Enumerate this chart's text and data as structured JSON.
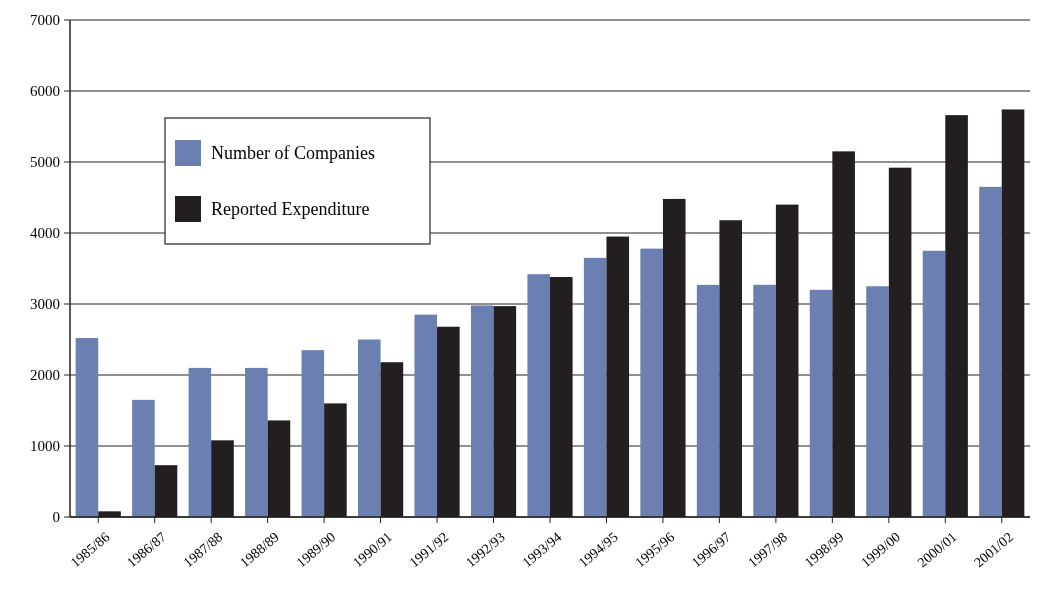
{
  "chart_data": {
    "type": "bar",
    "categories": [
      "1985/86",
      "1986/87",
      "1987/88",
      "1988/89",
      "1989/90",
      "1990/91",
      "1991/92",
      "1992/93",
      "1993/94",
      "1994/95",
      "1995/96",
      "1996/97",
      "1997/98",
      "1998/99",
      "1999/00",
      "2000/01",
      "2001/02"
    ],
    "series": [
      {
        "name": "Number of Companies",
        "color": "#6b80b0",
        "values": [
          2520,
          1650,
          2100,
          2100,
          2350,
          2500,
          2850,
          2980,
          3420,
          3650,
          3780,
          3270,
          3270,
          3200,
          3250,
          3750,
          4650
        ]
      },
      {
        "name": "Reported Expenditure",
        "color": "#231f20",
        "values": [
          80,
          730,
          1080,
          1360,
          1600,
          2180,
          2680,
          2970,
          3380,
          3950,
          4480,
          4180,
          4400,
          5150,
          4920,
          5660,
          5740
        ]
      }
    ],
    "ylim": [
      0,
      7000
    ],
    "yticks": [
      0,
      1000,
      2000,
      3000,
      4000,
      5000,
      6000,
      7000
    ],
    "grid": "y",
    "legend": "top left"
  }
}
